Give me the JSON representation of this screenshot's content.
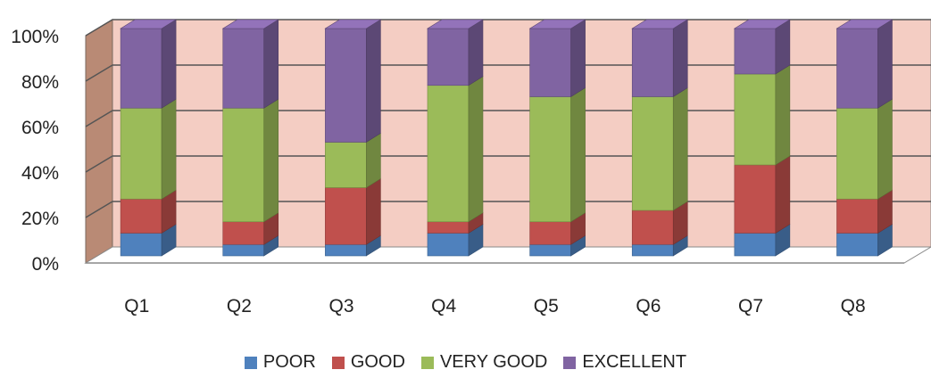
{
  "chart_data": {
    "type": "bar",
    "stacked": true,
    "three_d": true,
    "categories": [
      "Q1",
      "Q2",
      "Q3",
      "Q4",
      "Q5",
      "Q6",
      "Q7",
      "Q8"
    ],
    "y_ticks": [
      "0%",
      "20%",
      "40%",
      "60%",
      "80%",
      "100%"
    ],
    "ylim": [
      0,
      100
    ],
    "grid": true,
    "legend_position": "bottom",
    "series": [
      {
        "name": "POOR",
        "color": "#4f81bd",
        "values": [
          10,
          5,
          5,
          10,
          5,
          5,
          10,
          10
        ]
      },
      {
        "name": "GOOD",
        "color": "#c0504d",
        "values": [
          15,
          10,
          25,
          5,
          10,
          15,
          30,
          15
        ]
      },
      {
        "name": "VERY GOOD",
        "color": "#9bbb59",
        "values": [
          40,
          50,
          20,
          60,
          55,
          50,
          40,
          40
        ]
      },
      {
        "name": "EXCELLENT",
        "color": "#8064a2",
        "values": [
          35,
          35,
          50,
          25,
          30,
          30,
          20,
          35
        ]
      }
    ]
  }
}
